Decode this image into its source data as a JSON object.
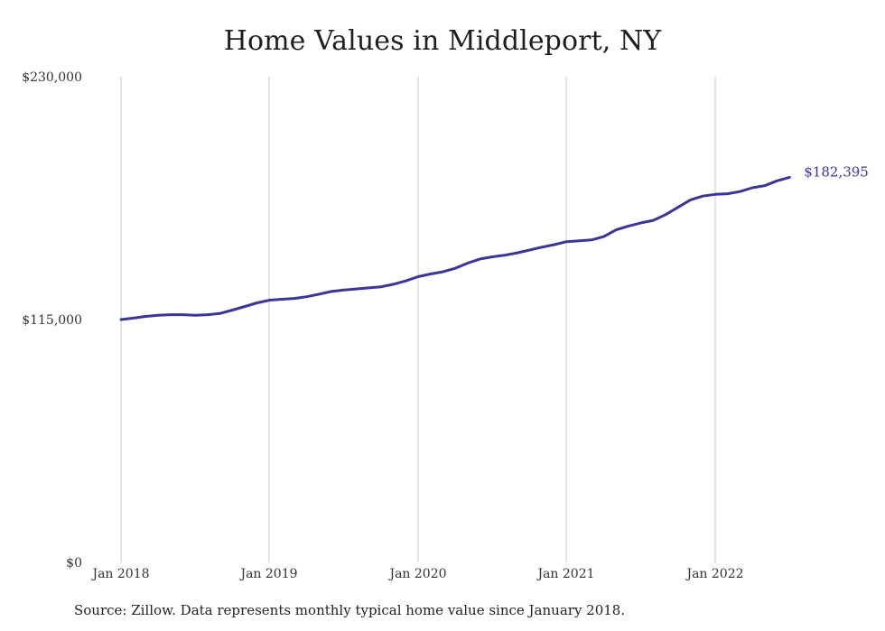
{
  "chart_data": {
    "type": "line",
    "title": "Home Values in Middleport, NY",
    "xlabel": "",
    "ylabel": "",
    "x_ticks": [
      "Jan 2018",
      "Jan 2019",
      "Jan 2020",
      "Jan 2021",
      "Jan 2022"
    ],
    "y_ticks": [
      "$0",
      "$115,000",
      "$230,000"
    ],
    "ylim": [
      0,
      230000
    ],
    "xlim": [
      "2018-01",
      "2022-07"
    ],
    "grid": "vertical",
    "line_color": "#3a3597",
    "end_label": "$182,395",
    "series": [
      {
        "x": [
          "2018-01",
          "2018-02",
          "2018-03",
          "2018-04",
          "2018-05",
          "2018-06",
          "2018-07",
          "2018-08",
          "2018-09",
          "2018-10",
          "2018-11",
          "2018-12",
          "2019-01",
          "2019-02",
          "2019-03",
          "2019-04",
          "2019-05",
          "2019-06",
          "2019-07",
          "2019-08",
          "2019-09",
          "2019-10",
          "2019-11",
          "2019-12",
          "2020-01",
          "2020-02",
          "2020-03",
          "2020-04",
          "2020-05",
          "2020-06",
          "2020-07",
          "2020-08",
          "2020-09",
          "2020-10",
          "2020-11",
          "2020-12",
          "2021-01",
          "2021-02",
          "2021-03",
          "2021-04",
          "2021-05",
          "2021-06",
          "2021-07",
          "2021-08",
          "2021-09",
          "2021-10",
          "2021-11",
          "2021-12",
          "2022-01",
          "2022-02",
          "2022-03",
          "2022-04",
          "2022-05",
          "2022-06",
          "2022-07"
        ],
        "values": [
          115000,
          115700,
          116500,
          117000,
          117300,
          117300,
          117000,
          117300,
          117900,
          119500,
          121200,
          122900,
          124200,
          124600,
          125000,
          125800,
          127000,
          128300,
          129000,
          129500,
          130000,
          130500,
          131700,
          133300,
          135300,
          136600,
          137600,
          139300,
          141700,
          143700,
          144700,
          145500,
          146600,
          147900,
          149300,
          150500,
          151900,
          152300,
          152700,
          154300,
          157500,
          159300,
          160800,
          162000,
          164700,
          168200,
          171700,
          173500,
          174300,
          174600,
          175600,
          177400,
          178400,
          180700,
          182395
        ]
      }
    ]
  },
  "source_text": "Source: Zillow. Data represents monthly typical home value since January 2018."
}
